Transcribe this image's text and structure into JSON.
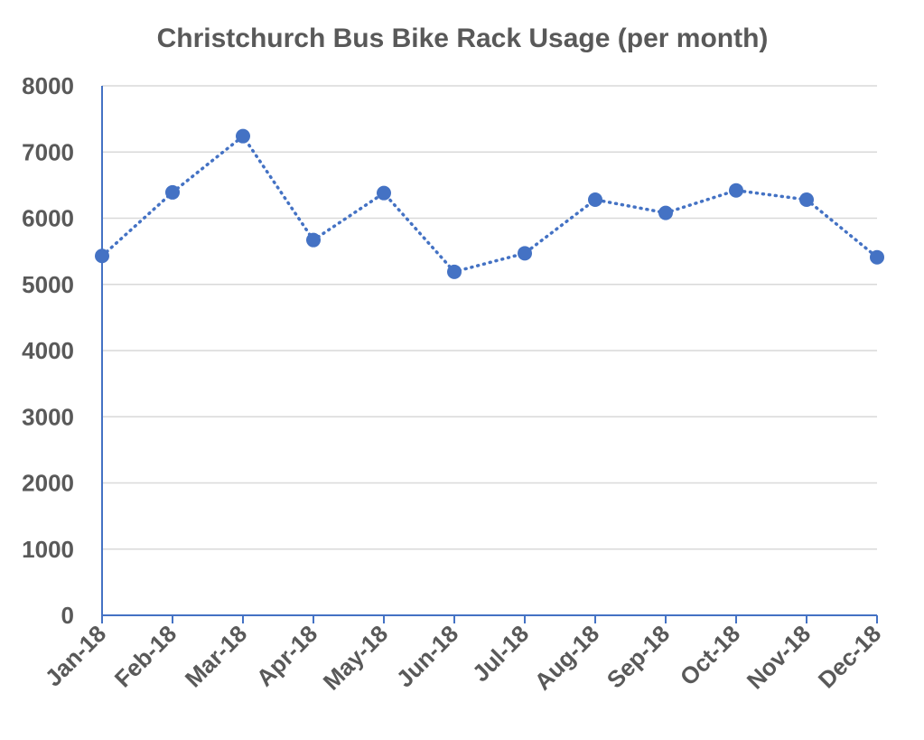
{
  "chart_data": {
    "type": "line",
    "title": "Christchurch Bus Bike Rack Usage (per month)",
    "xlabel": "",
    "ylabel": "",
    "categories": [
      "Jan-18",
      "Feb-18",
      "Mar-18",
      "Apr-18",
      "May-18",
      "Jun-18",
      "Jul-18",
      "Aug-18",
      "Sep-18",
      "Oct-18",
      "Nov-18",
      "Dec-18"
    ],
    "series": [
      {
        "values": [
          5430,
          6390,
          7240,
          5670,
          6380,
          5190,
          5470,
          6280,
          6080,
          6420,
          6280,
          5410
        ],
        "color": "#4472c4",
        "line_style": "dotted",
        "marker": "circle"
      }
    ],
    "ylim": [
      0,
      8000
    ],
    "yticks": [
      0,
      1000,
      2000,
      3000,
      4000,
      5000,
      6000,
      7000,
      8000
    ],
    "grid": true,
    "legend": "none",
    "colors": {
      "axis": "#4472c4",
      "grid": "#d9d9d9",
      "text": "#595959"
    }
  }
}
